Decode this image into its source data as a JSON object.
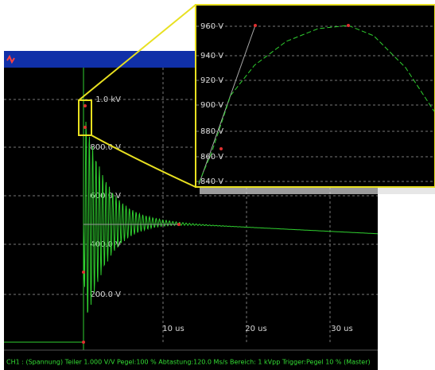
{
  "main": {
    "y_labels": [
      "1.0 kV",
      "800.0 V",
      "600.0 V",
      "400.0 V",
      "200.0 V"
    ],
    "x_labels": [
      "10 us",
      "20 us",
      "30 us"
    ]
  },
  "zoom": {
    "y_labels": [
      "960 V",
      "940 V",
      "920 V",
      "900 V",
      "880 V",
      "860 V",
      "840 V"
    ]
  },
  "status_bar": "CH1 : (Spannung)  Teiler 1.000 V/V  Pegel:100 %  Abtastung:120.0 Ms/s  Bereich:  1 kVpp  Trigger:Pegel 10 %  (Master)"
}
